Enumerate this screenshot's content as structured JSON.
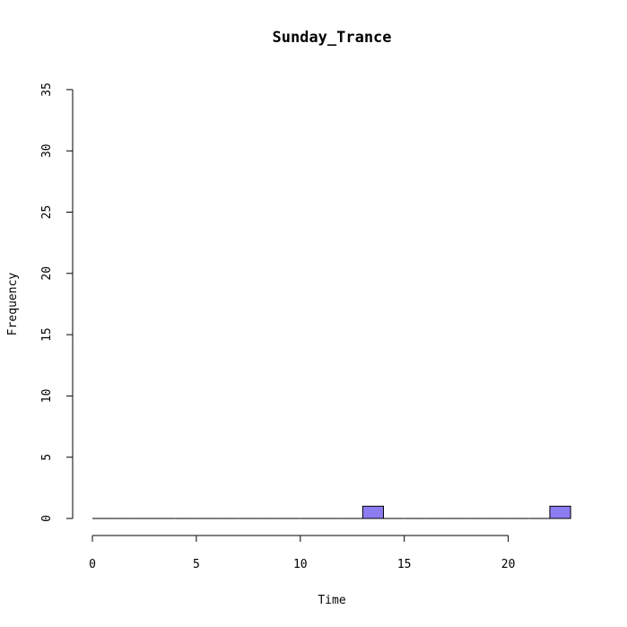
{
  "chart_data": {
    "type": "bar",
    "title": "Sunday_Trance",
    "xlabel": "Time",
    "ylabel": "Frequency",
    "xlim": [
      0,
      23
    ],
    "ylim": [
      0,
      35
    ],
    "x_ticks": [
      0,
      5,
      10,
      15,
      20
    ],
    "y_ticks": [
      0,
      5,
      10,
      15,
      20,
      25,
      30,
      35
    ],
    "bin_width": 1,
    "bins": [
      {
        "start": 0,
        "end": 1,
        "count": 0
      },
      {
        "start": 1,
        "end": 2,
        "count": 0
      },
      {
        "start": 2,
        "end": 3,
        "count": 0
      },
      {
        "start": 3,
        "end": 4,
        "count": 0
      },
      {
        "start": 4,
        "end": 5,
        "count": 0
      },
      {
        "start": 5,
        "end": 6,
        "count": 0
      },
      {
        "start": 6,
        "end": 7,
        "count": 0
      },
      {
        "start": 7,
        "end": 8,
        "count": 0
      },
      {
        "start": 8,
        "end": 9,
        "count": 0
      },
      {
        "start": 9,
        "end": 10,
        "count": 0
      },
      {
        "start": 10,
        "end": 11,
        "count": 0
      },
      {
        "start": 11,
        "end": 12,
        "count": 0
      },
      {
        "start": 12,
        "end": 13,
        "count": 0
      },
      {
        "start": 13,
        "end": 14,
        "count": 1
      },
      {
        "start": 14,
        "end": 15,
        "count": 0
      },
      {
        "start": 15,
        "end": 16,
        "count": 0
      },
      {
        "start": 16,
        "end": 17,
        "count": 0
      },
      {
        "start": 17,
        "end": 18,
        "count": 0
      },
      {
        "start": 18,
        "end": 19,
        "count": 0
      },
      {
        "start": 19,
        "end": 20,
        "count": 0
      },
      {
        "start": 20,
        "end": 21,
        "count": 0
      },
      {
        "start": 21,
        "end": 22,
        "count": 0
      },
      {
        "start": 22,
        "end": 23,
        "count": 1
      }
    ],
    "bar_color": "#8b7cf0",
    "grid": false,
    "legend": "none"
  }
}
